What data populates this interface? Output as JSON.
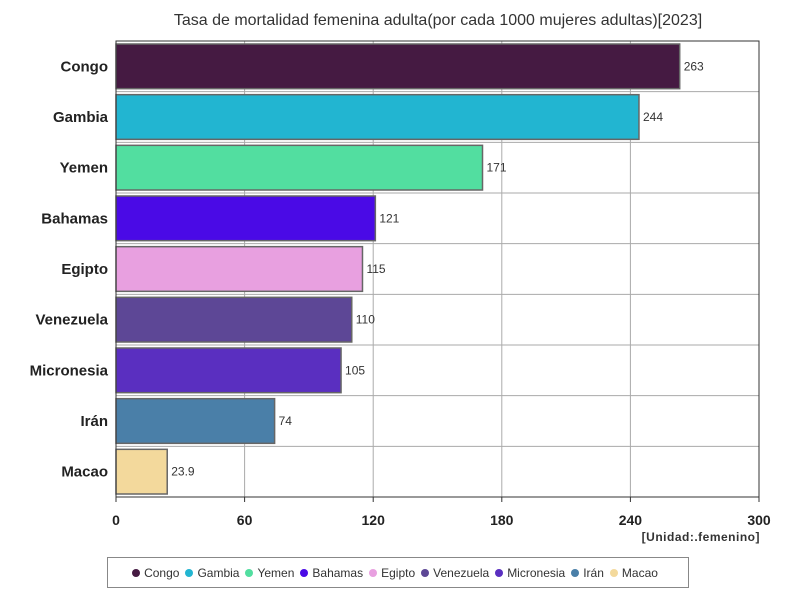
{
  "chart_data": {
    "type": "bar",
    "orientation": "horizontal",
    "title": "Tasa de mortalidad femenina adulta(por cada 1000 mujeres adultas)[2023]",
    "unit_label": "[Unidad:.femenino]",
    "categories": [
      "Congo",
      "Gambia",
      "Yemen",
      "Bahamas",
      "Egipto",
      "Venezuela",
      "Micronesia",
      "Irán",
      "Macao"
    ],
    "values": [
      263,
      244,
      171,
      121,
      115,
      110,
      105,
      74,
      23.9
    ],
    "value_labels": [
      "263",
      "244",
      "171",
      "121",
      "115",
      "110",
      "105",
      "74",
      "23.9"
    ],
    "colors": [
      "#451a42",
      "#22b5d1",
      "#52dea0",
      "#4a0ae6",
      "#e8a0e0",
      "#5d4796",
      "#5a2fc0",
      "#4a7fa8",
      "#f3d99c"
    ],
    "xlim": [
      0,
      300
    ],
    "x_ticks": [
      0,
      60,
      120,
      180,
      240,
      300
    ],
    "grid": true,
    "legend_position": "bottom"
  }
}
